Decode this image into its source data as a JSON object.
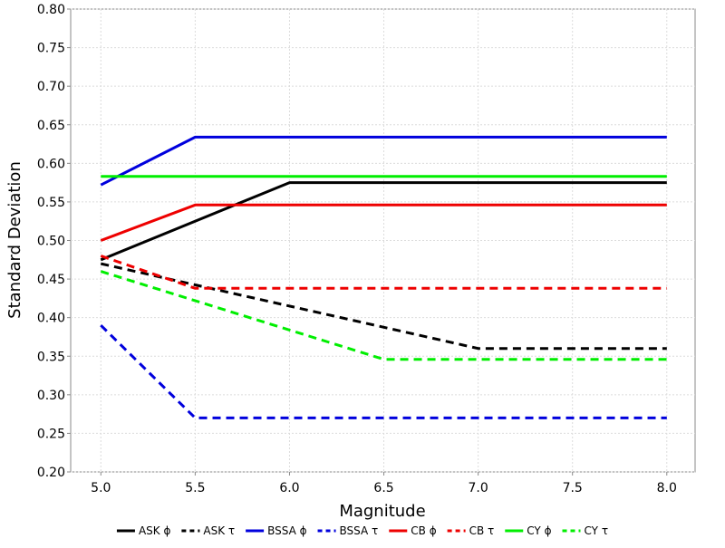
{
  "chart_data": {
    "type": "line",
    "title": "",
    "xlabel": "Magnitude",
    "ylabel": "Standard Deviation",
    "xlim": [
      4.84,
      8.15
    ],
    "ylim": [
      0.2,
      0.8
    ],
    "xticks": [
      5.0,
      5.5,
      6.0,
      6.5,
      7.0,
      7.5,
      8.0
    ],
    "xtick_labels": [
      "5.0",
      "5.5",
      "6.0",
      "6.5",
      "7.0",
      "7.5",
      "8.0"
    ],
    "yticks": [
      0.2,
      0.25,
      0.3,
      0.35,
      0.4,
      0.45,
      0.5,
      0.55,
      0.6,
      0.65,
      0.7,
      0.75,
      0.8
    ],
    "ytick_labels": [
      "0.20",
      "0.25",
      "0.30",
      "0.35",
      "0.40",
      "0.45",
      "0.50",
      "0.55",
      "0.60",
      "0.65",
      "0.70",
      "0.75",
      "0.80"
    ],
    "grid": true,
    "legend_position": "bottom",
    "series": [
      {
        "name": "ASK ϕ",
        "color": "#000000",
        "dash": false,
        "x": [
          5.0,
          6.0,
          8.0
        ],
        "y": [
          0.475,
          0.575,
          0.575
        ]
      },
      {
        "name": "ASK τ",
        "color": "#000000",
        "dash": true,
        "x": [
          5.0,
          7.0,
          8.0
        ],
        "y": [
          0.47,
          0.36,
          0.36
        ]
      },
      {
        "name": "BSSA ϕ",
        "color": "#0000dd",
        "dash": false,
        "x": [
          5.0,
          5.5,
          8.0
        ],
        "y": [
          0.572,
          0.634,
          0.634
        ]
      },
      {
        "name": "BSSA τ",
        "color": "#0000dd",
        "dash": true,
        "x": [
          5.0,
          5.5,
          8.0
        ],
        "y": [
          0.39,
          0.27,
          0.27
        ]
      },
      {
        "name": "CB ϕ",
        "color": "#ee0000",
        "dash": false,
        "x": [
          5.0,
          5.5,
          8.0
        ],
        "y": [
          0.5,
          0.546,
          0.546
        ]
      },
      {
        "name": "CB τ",
        "color": "#ee0000",
        "dash": true,
        "x": [
          5.0,
          5.5,
          8.0
        ],
        "y": [
          0.48,
          0.438,
          0.438
        ]
      },
      {
        "name": "CY ϕ",
        "color": "#00ee00",
        "dash": false,
        "x": [
          5.0,
          8.0
        ],
        "y": [
          0.583,
          0.583
        ]
      },
      {
        "name": "CY τ",
        "color": "#00ee00",
        "dash": true,
        "x": [
          5.0,
          6.5,
          8.0
        ],
        "y": [
          0.46,
          0.346,
          0.346
        ]
      }
    ]
  }
}
